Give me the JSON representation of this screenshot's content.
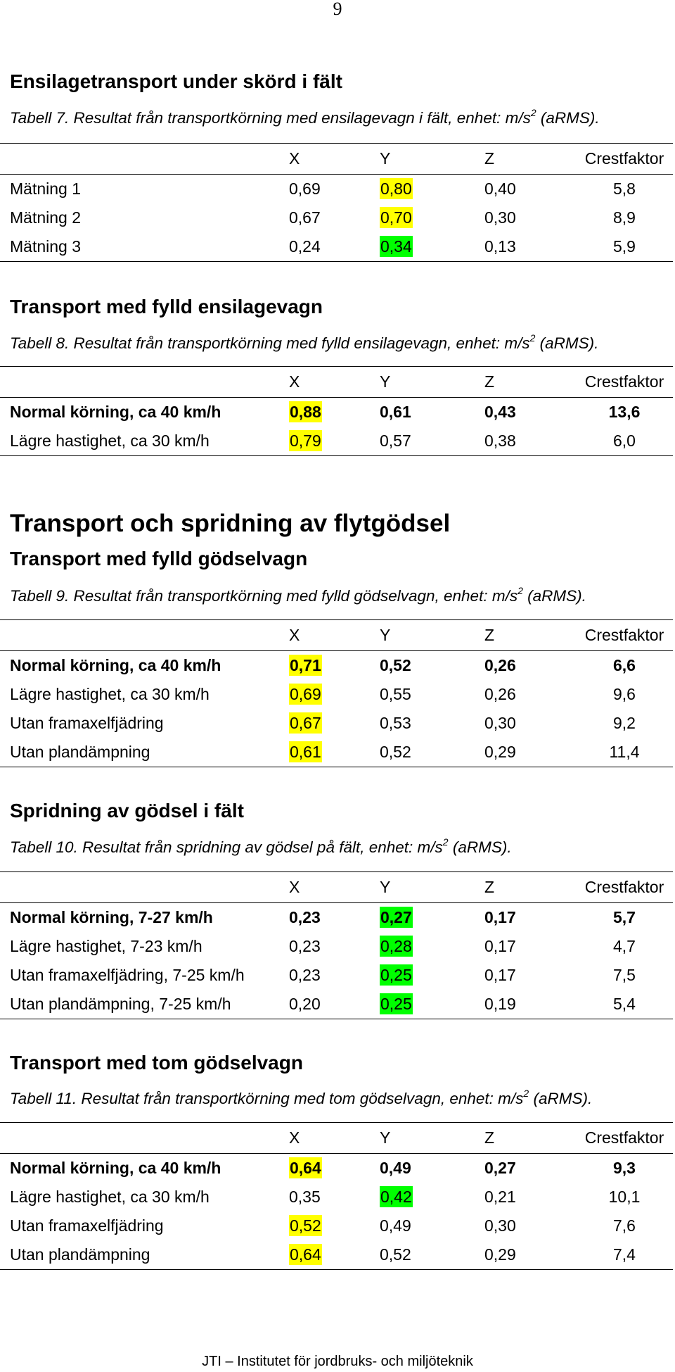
{
  "page_number": "9",
  "section1": {
    "heading": "Ensilagetransport under skörd i fält",
    "caption": {
      "text": "Tabell 7. Resultat från transportkörning med ensilagevagn i fält, enhet: m/s",
      "sup": "2",
      "suffix": " (aRMS)."
    },
    "columns": [
      "",
      "X",
      "Y",
      "Z",
      "Crestfaktor"
    ],
    "rows": [
      {
        "label": "Mätning 1",
        "x": "0,69",
        "y": "0,80",
        "z": "0,40",
        "crest": "5,8",
        "bold": false,
        "hl": {
          "y": "yellow"
        }
      },
      {
        "label": "Mätning 2",
        "x": "0,67",
        "y": "0,70",
        "z": "0,30",
        "crest": "8,9",
        "bold": false,
        "hl": {
          "y": "yellow"
        }
      },
      {
        "label": "Mätning 3",
        "x": "0,24",
        "y": "0,34",
        "z": "0,13",
        "crest": "5,9",
        "bold": false,
        "hl": {
          "y": "green"
        }
      }
    ]
  },
  "section2": {
    "heading": "Transport med fylld ensilagevagn",
    "caption": {
      "text": "Tabell 8. Resultat från transportkörning med fylld ensilagevagn, enhet: m/s",
      "sup": "2",
      "suffix": " (aRMS)."
    },
    "columns": [
      "",
      "X",
      "Y",
      "Z",
      "Crestfaktor"
    ],
    "rows": [
      {
        "label": "Normal körning, ca 40 km/h",
        "x": "0,88",
        "y": "0,61",
        "z": "0,43",
        "crest": "13,6",
        "bold": true,
        "hl": {
          "x": "yellow"
        }
      },
      {
        "label": "Lägre hastighet, ca 30 km/h",
        "x": "0,79",
        "y": "0,57",
        "z": "0,38",
        "crest": "6,0",
        "bold": false,
        "hl": {
          "x": "yellow"
        }
      }
    ]
  },
  "section3": {
    "heading": "Transport och spridning av flytgödsel",
    "subheading": "Transport med fylld gödselvagn",
    "caption": {
      "text": "Tabell 9. Resultat från transportkörning med fylld gödselvagn, enhet: m/s",
      "sup": "2",
      "suffix": " (aRMS)."
    },
    "columns": [
      "",
      "X",
      "Y",
      "Z",
      "Crestfaktor"
    ],
    "rows": [
      {
        "label": "Normal körning, ca 40 km/h",
        "x": "0,71",
        "y": "0,52",
        "z": "0,26",
        "crest": "6,6",
        "bold": true,
        "hl": {
          "x": "yellow"
        }
      },
      {
        "label": "Lägre hastighet, ca 30 km/h",
        "x": "0,69",
        "y": "0,55",
        "z": "0,26",
        "crest": "9,6",
        "bold": false,
        "hl": {
          "x": "yellow"
        }
      },
      {
        "label": "Utan framaxelfjädring",
        "x": "0,67",
        "y": "0,53",
        "z": "0,30",
        "crest": "9,2",
        "bold": false,
        "hl": {
          "x": "yellow"
        }
      },
      {
        "label": "Utan plandämpning",
        "x": "0,61",
        "y": "0,52",
        "z": "0,29",
        "crest": "11,4",
        "bold": false,
        "hl": {
          "x": "yellow"
        }
      }
    ]
  },
  "section4": {
    "heading": "Spridning av gödsel i fält",
    "caption": {
      "text": "Tabell 10. Resultat från spridning av gödsel på fält, enhet: m/s",
      "sup": "2",
      "suffix": " (aRMS)."
    },
    "columns": [
      "",
      "X",
      "Y",
      "Z",
      "Crestfaktor"
    ],
    "rows": [
      {
        "label": "Normal körning, 7-27 km/h",
        "x": "0,23",
        "y": "0,27",
        "z": "0,17",
        "crest": "5,7",
        "bold": true,
        "hl": {
          "y": "green"
        }
      },
      {
        "label": "Lägre hastighet, 7-23 km/h",
        "x": "0,23",
        "y": "0,28",
        "z": "0,17",
        "crest": "4,7",
        "bold": false,
        "hl": {
          "y": "green"
        }
      },
      {
        "label": "Utan framaxelfjädring, 7-25 km/h",
        "x": "0,23",
        "y": "0,25",
        "z": "0,17",
        "crest": "7,5",
        "bold": false,
        "hl": {
          "y": "green"
        }
      },
      {
        "label": "Utan plandämpning, 7-25 km/h",
        "x": "0,20",
        "y": "0,25",
        "z": "0,19",
        "crest": "5,4",
        "bold": false,
        "hl": {
          "y": "green"
        }
      }
    ]
  },
  "section5": {
    "heading": "Transport med tom gödselvagn",
    "caption": {
      "text": "Tabell 11. Resultat från transportkörning med tom gödselvagn, enhet: m/s",
      "sup": "2",
      "suffix": " (aRMS)."
    },
    "columns": [
      "",
      "X",
      "Y",
      "Z",
      "Crestfaktor"
    ],
    "rows": [
      {
        "label": "Normal körning, ca 40 km/h",
        "x": "0,64",
        "y": "0,49",
        "z": "0,27",
        "crest": "9,3",
        "bold": true,
        "hl": {
          "x": "yellow"
        }
      },
      {
        "label": "Lägre hastighet, ca 30 km/h",
        "x": "0,35",
        "y": "0,42",
        "z": "0,21",
        "crest": "10,1",
        "bold": false,
        "hl": {
          "y": "green"
        }
      },
      {
        "label": "Utan framaxelfjädring",
        "x": "0,52",
        "y": "0,49",
        "z": "0,30",
        "crest": "7,6",
        "bold": false,
        "hl": {
          "x": "yellow"
        }
      },
      {
        "label": "Utan plandämpning",
        "x": "0,64",
        "y": "0,52",
        "z": "0,29",
        "crest": "7,4",
        "bold": false,
        "hl": {
          "x": "yellow"
        }
      }
    ]
  },
  "highlight_colors": {
    "yellow": "#ffff00",
    "green": "#00ff00"
  },
  "footer": "JTI – Institutet för jordbruks- och miljöteknik"
}
